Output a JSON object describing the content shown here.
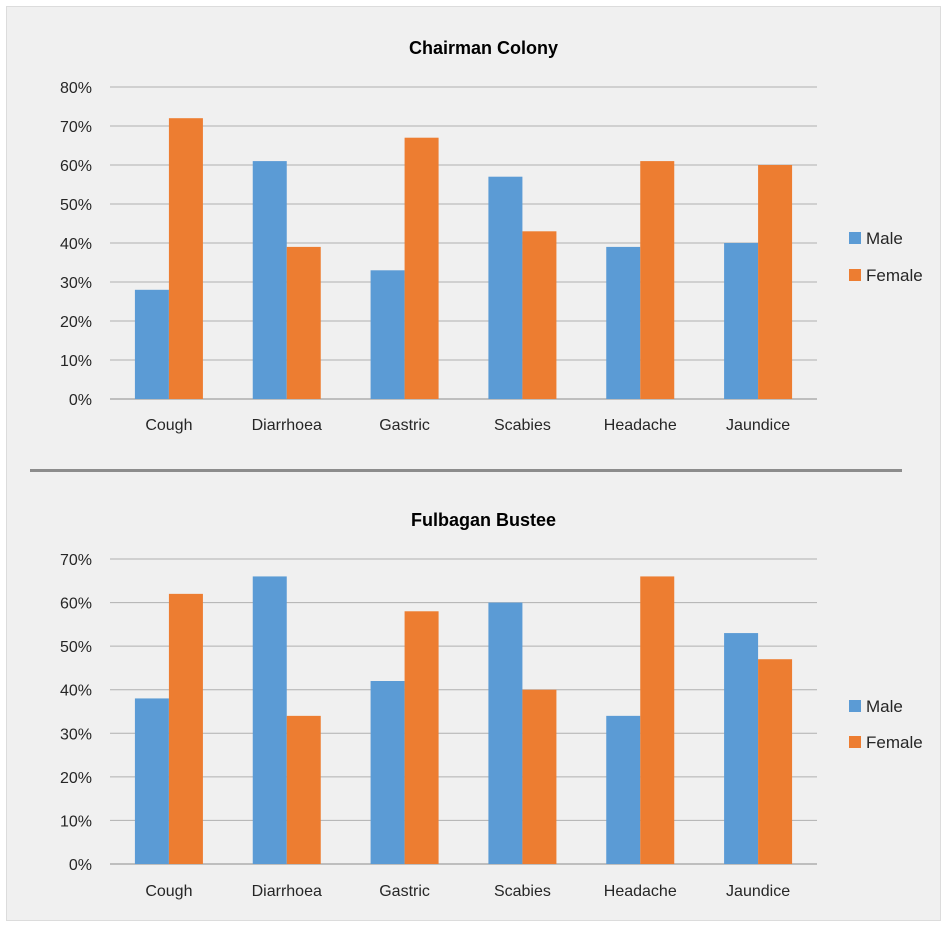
{
  "colors": {
    "male": "#5b9bd5",
    "female": "#ed7d31",
    "grid": "#b0b0b0",
    "axis": "#8c8c8c"
  },
  "chart_data": [
    {
      "type": "bar",
      "title": "Chairman Colony",
      "categories": [
        "Cough",
        "Diarrhoea",
        "Gastric",
        "Scabies",
        "Headache",
        "Jaundice"
      ],
      "series": [
        {
          "name": "Male",
          "values": [
            28,
            61,
            33,
            57,
            39,
            40
          ]
        },
        {
          "name": "Female",
          "values": [
            72,
            39,
            67,
            43,
            61,
            60
          ]
        }
      ],
      "ylim": [
        0,
        80
      ],
      "yticks": [
        "0%",
        "10%",
        "20%",
        "30%",
        "40%",
        "50%",
        "60%",
        "70%",
        "80%"
      ],
      "xlabel": "",
      "ylabel": "",
      "grid": true,
      "legend": "right"
    },
    {
      "type": "bar",
      "title": "Fulbagan Bustee",
      "categories": [
        "Cough",
        "Diarrhoea",
        "Gastric",
        "Scabies",
        "Headache",
        "Jaundice"
      ],
      "series": [
        {
          "name": "Male",
          "values": [
            38,
            66,
            42,
            60,
            34,
            53
          ]
        },
        {
          "name": "Female",
          "values": [
            62,
            34,
            58,
            40,
            66,
            47
          ]
        }
      ],
      "ylim": [
        0,
        70
      ],
      "yticks": [
        "0%",
        "10%",
        "20%",
        "30%",
        "40%",
        "50%",
        "60%",
        "70%"
      ],
      "xlabel": "",
      "ylabel": "",
      "grid": true,
      "legend": "right"
    }
  ]
}
